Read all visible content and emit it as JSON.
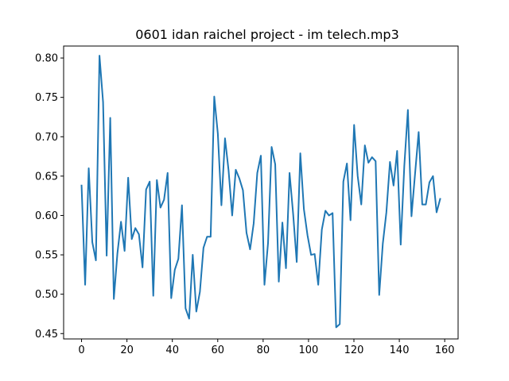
{
  "chart_data": {
    "type": "line",
    "title": "0601 idan raichel project - im telech.mp3",
    "xlabel": "",
    "ylabel": "",
    "xlim": [
      -7.9,
      165.9
    ],
    "ylim": [
      0.4432,
      0.8152
    ],
    "xticks": [
      0,
      20,
      40,
      60,
      80,
      100,
      120,
      140,
      160
    ],
    "xtick_labels": [
      "0",
      "20",
      "40",
      "60",
      "80",
      "100",
      "120",
      "140",
      "160"
    ],
    "yticks": [
      0.45,
      0.5,
      0.55,
      0.6,
      0.65,
      0.7,
      0.75,
      0.8
    ],
    "ytick_labels": [
      "0.45",
      "0.50",
      "0.55",
      "0.60",
      "0.65",
      "0.70",
      "0.75",
      "0.80"
    ],
    "grid": false,
    "series": [
      {
        "color": "#1f77b4",
        "x": [
          0,
          1.58,
          3.16,
          4.74,
          6.32,
          7.9,
          9.48,
          11.06,
          12.64,
          14.22,
          15.8,
          17.38,
          18.96,
          20.54,
          22.12,
          23.7,
          25.28,
          26.86,
          28.44,
          30.02,
          31.6,
          33.18,
          34.76,
          36.34,
          37.92,
          39.5,
          41.08,
          42.66,
          44.24,
          45.82,
          47.4,
          48.98,
          50.56,
          52.14,
          53.72,
          55.3,
          56.88,
          58.46,
          60.04,
          61.62,
          63.2,
          64.78,
          66.36,
          67.94,
          69.52,
          71.1,
          72.68,
          74.26,
          75.84,
          77.42,
          79,
          80.58,
          82.16,
          83.74,
          85.32,
          86.9,
          88.48,
          90.06,
          91.64,
          93.22,
          94.8,
          96.38,
          97.96,
          99.54,
          101.12,
          102.7,
          104.28,
          105.86,
          107.44,
          109.02,
          110.6,
          112.18,
          113.76,
          115.34,
          116.92,
          118.5,
          120.08,
          121.66,
          123.24,
          124.82,
          126.4,
          127.98,
          129.56,
          131.14,
          132.72,
          134.3,
          135.88,
          137.46,
          139.04,
          140.62,
          142.2,
          143.78,
          145.36,
          146.94,
          148.52,
          150.1,
          151.68,
          153.26,
          154.84,
          156.42,
          158
        ],
        "y": [
          0.638,
          0.512,
          0.66,
          0.566,
          0.543,
          0.803,
          0.744,
          0.549,
          0.724,
          0.494,
          0.552,
          0.592,
          0.555,
          0.648,
          0.57,
          0.584,
          0.576,
          0.534,
          0.633,
          0.643,
          0.498,
          0.645,
          0.61,
          0.62,
          0.654,
          0.495,
          0.531,
          0.545,
          0.613,
          0.482,
          0.469,
          0.55,
          0.478,
          0.503,
          0.559,
          0.573,
          0.573,
          0.751,
          0.704,
          0.613,
          0.698,
          0.657,
          0.6,
          0.658,
          0.647,
          0.632,
          0.578,
          0.557,
          0.59,
          0.654,
          0.676,
          0.512,
          0.565,
          0.687,
          0.665,
          0.516,
          0.591,
          0.533,
          0.654,
          0.602,
          0.541,
          0.679,
          0.608,
          0.575,
          0.55,
          0.551,
          0.512,
          0.582,
          0.606,
          0.6,
          0.603,
          0.458,
          0.462,
          0.643,
          0.666,
          0.594,
          0.715,
          0.65,
          0.614,
          0.689,
          0.667,
          0.674,
          0.669,
          0.499,
          0.564,
          0.604,
          0.668,
          0.638,
          0.682,
          0.563,
          0.663,
          0.734,
          0.599,
          0.653,
          0.706,
          0.614,
          0.614,
          0.642,
          0.65,
          0.604,
          0.621
        ]
      }
    ]
  }
}
